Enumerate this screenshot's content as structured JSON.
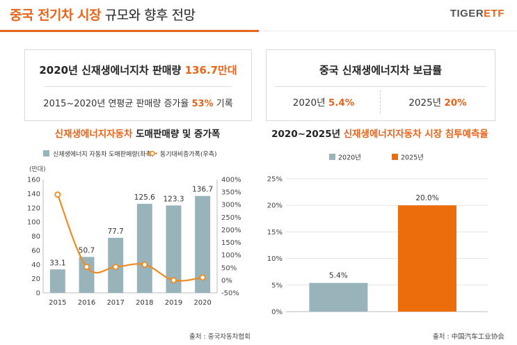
{
  "header": {
    "title_accent": "중국 전기차 시장",
    "title_rest": " 규모와 향후 전망",
    "logo_part1": "TIGER",
    "logo_part2": "ETF"
  },
  "box_left": {
    "main_prefix": "2020년 신재생에너지차 판매량 ",
    "main_value": "136.7만대",
    "sub_prefix": "2015~2020년 연평균 판매량 증가율 ",
    "sub_value": "53%",
    "sub_suffix": " 기록"
  },
  "box_right": {
    "main": "중국 신재생에너지차 보급률",
    "item1_label": "2020년 ",
    "item1_value": "5.4%",
    "item2_label": "2025년 ",
    "item2_value": "20%"
  },
  "chart_left_title": {
    "accent": "신재생에너지자동차",
    "rest": " 도매판매량 및 증가폭"
  },
  "chart_right_title": {
    "prefix": "2020~2025년 ",
    "accent": "신재생에너지자동차 시장 침투예측율"
  },
  "source_left": "출처 : 중국자동차협회",
  "source_right": "출처 : 中国汽车工业协会",
  "colors": {
    "bar": "#98b4ba",
    "line": "#ef8a1e",
    "accent": "#e8641b",
    "bar2025": "#ec6d0c"
  },
  "chart_data": [
    {
      "type": "bar+line",
      "categories": [
        "2015",
        "2016",
        "2017",
        "2018",
        "2019",
        "2020"
      ],
      "series": [
        {
          "name": "신재생에너지 자동차 도매판매량(좌축)",
          "type": "bar",
          "values": [
            33.1,
            50.7,
            77.7,
            125.6,
            123.3,
            136.7
          ],
          "labels": [
            "33.1",
            "50.7",
            "77.7",
            "125.6",
            "123.3",
            "136.7"
          ]
        },
        {
          "name": "동기대비증가폭(우측)",
          "type": "line",
          "values": [
            340,
            53,
            53,
            62,
            0,
            11
          ]
        }
      ],
      "left_axis": {
        "unit": "(만대)",
        "ylim": [
          0,
          160
        ],
        "ticks": [
          "0",
          "20",
          "40",
          "60",
          "80",
          "100",
          "120",
          "140",
          "160"
        ]
      },
      "right_axis": {
        "ylim": [
          -50,
          400
        ],
        "ticks": [
          "-50%",
          "0%",
          "50%",
          "100%",
          "150%",
          "200%",
          "250%",
          "300%",
          "350%",
          "400%"
        ]
      },
      "legend_position": "top"
    },
    {
      "type": "bar",
      "categories": [
        "2020년",
        "2025년"
      ],
      "values": [
        5.4,
        20.0
      ],
      "labels": [
        "5.4%",
        "20.0%"
      ],
      "ylim": [
        0,
        25
      ],
      "ticks": [
        "0%",
        "5%",
        "10%",
        "15%",
        "20%",
        "25%"
      ],
      "grid": true,
      "legend_position": "top"
    }
  ]
}
